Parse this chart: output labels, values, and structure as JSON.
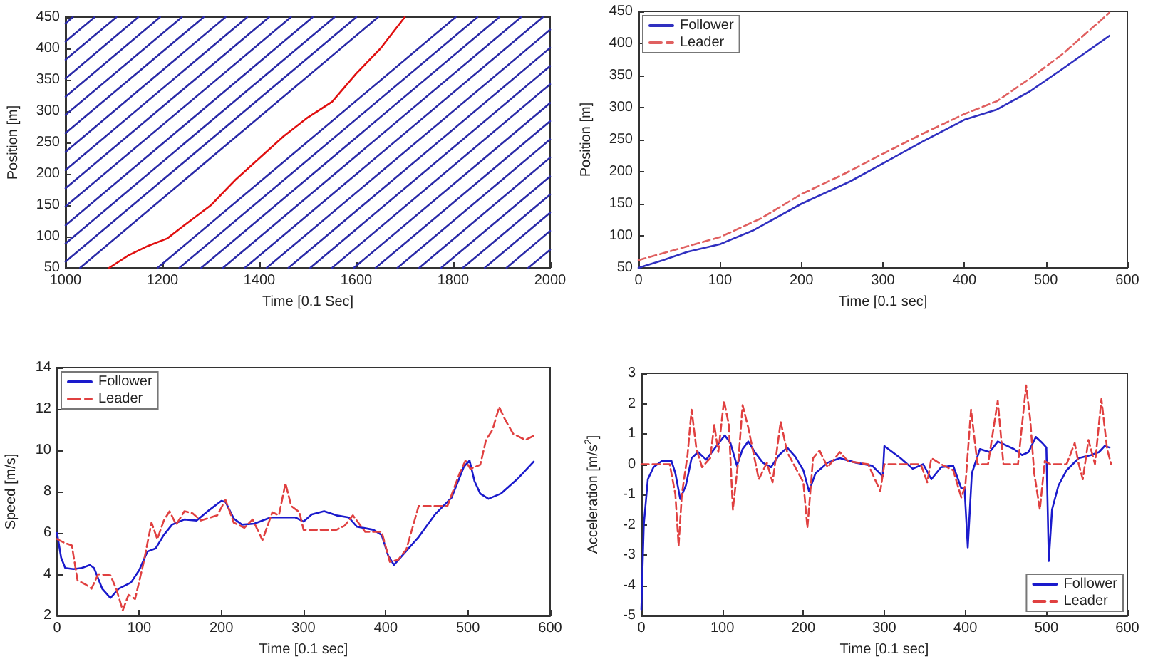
{
  "chart_data": [
    {
      "type": "line",
      "xlabel": "Time [0.1 Sec]",
      "ylabel": "Position [m]",
      "xlim": [
        1000,
        2000
      ],
      "ylim": [
        50,
        450
      ],
      "xticks": [
        1000,
        1200,
        1400,
        1600,
        1800,
        2000
      ],
      "yticks": [
        50,
        100,
        150,
        200,
        250,
        300,
        350,
        400,
        450
      ],
      "grid": false,
      "legend": false,
      "series": [
        {
          "color": "#2a2aa8",
          "x": [
            1000,
            1015
          ],
          "values": [
            440,
            450
          ]
        },
        {
          "color": "#2a2aa8",
          "x": [
            1000,
            1060
          ],
          "values": [
            411,
            450
          ]
        },
        {
          "color": "#2a2aa8",
          "x": [
            1000,
            1105
          ],
          "values": [
            382,
            450
          ]
        },
        {
          "color": "#2a2aa8",
          "x": [
            1000,
            1150
          ],
          "values": [
            352,
            450
          ]
        },
        {
          "color": "#2a2aa8",
          "x": [
            1000,
            1195
          ],
          "values": [
            323,
            450
          ]
        },
        {
          "color": "#2a2aa8",
          "x": [
            1000,
            1240
          ],
          "values": [
            294,
            450
          ]
        },
        {
          "color": "#2a2aa8",
          "x": [
            1000,
            1285
          ],
          "values": [
            265,
            450
          ]
        },
        {
          "color": "#2a2aa8",
          "x": [
            1000,
            1330
          ],
          "values": [
            235,
            450
          ]
        },
        {
          "color": "#2a2aa8",
          "x": [
            1000,
            1375
          ],
          "values": [
            206,
            450
          ]
        },
        {
          "color": "#2a2aa8",
          "x": [
            1000,
            1420
          ],
          "values": [
            177,
            450
          ]
        },
        {
          "color": "#2a2aa8",
          "x": [
            1000,
            1465
          ],
          "values": [
            148,
            450
          ]
        },
        {
          "color": "#2a2aa8",
          "x": [
            1000,
            1510
          ],
          "values": [
            118,
            450
          ]
        },
        {
          "color": "#2a2aa8",
          "x": [
            1000,
            1555
          ],
          "values": [
            89,
            450
          ]
        },
        {
          "color": "#2a2aa8",
          "x": [
            1000,
            1600
          ],
          "values": [
            60,
            450
          ]
        },
        {
          "color": "#2a2aa8",
          "x": [
            1030,
            1645
          ],
          "values": [
            50,
            450
          ]
        },
        {
          "color": "#2a2aa8",
          "x": [
            1190,
            1805
          ],
          "values": [
            50,
            450
          ]
        },
        {
          "color": "#2a2aa8",
          "x": [
            1235,
            1850
          ],
          "values": [
            50,
            450
          ]
        },
        {
          "color": "#2a2aa8",
          "x": [
            1280,
            1895
          ],
          "values": [
            50,
            450
          ]
        },
        {
          "color": "#2a2aa8",
          "x": [
            1325,
            1940
          ],
          "values": [
            50,
            450
          ]
        },
        {
          "color": "#2a2aa8",
          "x": [
            1370,
            1985
          ],
          "values": [
            50,
            450
          ]
        },
        {
          "color": "#2a2aa8",
          "x": [
            1415,
            2000
          ],
          "values": [
            50,
            430
          ]
        },
        {
          "color": "#2a2aa8",
          "x": [
            1460,
            2000
          ],
          "values": [
            50,
            401
          ]
        },
        {
          "color": "#2a2aa8",
          "x": [
            1505,
            2000
          ],
          "values": [
            50,
            372
          ]
        },
        {
          "color": "#2a2aa8",
          "x": [
            1550,
            2000
          ],
          "values": [
            50,
            343
          ]
        },
        {
          "color": "#2a2aa8",
          "x": [
            1595,
            2000
          ],
          "values": [
            50,
            313
          ]
        },
        {
          "color": "#2a2aa8",
          "x": [
            1640,
            2000
          ],
          "values": [
            50,
            284
          ]
        },
        {
          "color": "#2a2aa8",
          "x": [
            1685,
            2000
          ],
          "values": [
            50,
            255
          ]
        },
        {
          "color": "#2a2aa8",
          "x": [
            1730,
            2000
          ],
          "values": [
            50,
            226
          ]
        },
        {
          "color": "#2a2aa8",
          "x": [
            1775,
            2000
          ],
          "values": [
            50,
            196
          ]
        },
        {
          "color": "#2a2aa8",
          "x": [
            1820,
            2000
          ],
          "values": [
            50,
            167
          ]
        },
        {
          "color": "#2a2aa8",
          "x": [
            1865,
            2000
          ],
          "values": [
            50,
            138
          ]
        },
        {
          "color": "#2a2aa8",
          "x": [
            1910,
            2000
          ],
          "values": [
            50,
            109
          ]
        },
        {
          "color": "#2a2aa8",
          "x": [
            1955,
            2000
          ],
          "values": [
            50,
            79
          ]
        },
        {
          "color": "#e01010",
          "x": [
            1090,
            1130,
            1170,
            1210,
            1240,
            1300,
            1350,
            1400,
            1450,
            1500,
            1550,
            1600,
            1650,
            1700
          ],
          "values": [
            50,
            70,
            85,
            97,
            115,
            150,
            190,
            225,
            260,
            290,
            315,
            360,
            400,
            450
          ]
        }
      ]
    },
    {
      "type": "line",
      "xlabel": "Time [0.1 sec]",
      "ylabel": "Position [m]",
      "xlim": [
        0,
        600
      ],
      "ylim": [
        50,
        450
      ],
      "xticks": [
        0,
        100,
        200,
        300,
        400,
        500,
        600
      ],
      "yticks": [
        50,
        100,
        150,
        200,
        250,
        300,
        350,
        400,
        450
      ],
      "grid": false,
      "legend": "top left",
      "series": [
        {
          "name": "Follower",
          "color": "#3030c0",
          "x": [
            0,
            30,
            60,
            100,
            140,
            200,
            260,
            300,
            350,
            400,
            440,
            480,
            520,
            578
          ],
          "values": [
            50,
            62,
            75,
            87,
            108,
            150,
            185,
            213,
            248,
            281,
            297,
            325,
            360,
            412
          ]
        },
        {
          "name": "Leader",
          "color": "#e06060",
          "line_style": "dashed",
          "x": [
            0,
            50,
            100,
            150,
            200,
            250,
            300,
            350,
            400,
            440,
            480,
            520,
            578
          ],
          "values": [
            62,
            80,
            98,
            127,
            165,
            195,
            228,
            260,
            290,
            310,
            345,
            383,
            448
          ]
        }
      ]
    },
    {
      "type": "line",
      "xlabel": "Time [0.1 sec]",
      "ylabel": "Speed [m/s]",
      "xlim": [
        0,
        600
      ],
      "ylim": [
        2,
        14
      ],
      "xticks": [
        0,
        100,
        200,
        300,
        400,
        500,
        600
      ],
      "yticks": [
        2,
        4,
        6,
        8,
        10,
        12,
        14
      ],
      "grid": false,
      "legend": "top left",
      "series": [
        {
          "name": "Follower",
          "color": "#1a1acc",
          "x": [
            0,
            5,
            10,
            20,
            30,
            40,
            45,
            55,
            65,
            75,
            90,
            100,
            110,
            120,
            130,
            140,
            155,
            170,
            185,
            200,
            205,
            215,
            225,
            240,
            260,
            290,
            300,
            310,
            325,
            340,
            355,
            365,
            385,
            395,
            403,
            410,
            420,
            440,
            460,
            480,
            495,
            502,
            508,
            515,
            525,
            540,
            560,
            580
          ],
          "values": [
            6.0,
            4.8,
            4.3,
            4.25,
            4.3,
            4.45,
            4.3,
            3.3,
            2.85,
            3.3,
            3.6,
            4.2,
            5.1,
            5.25,
            5.9,
            6.4,
            6.65,
            6.6,
            7.1,
            7.55,
            7.5,
            6.7,
            6.4,
            6.45,
            6.75,
            6.75,
            6.55,
            6.9,
            7.05,
            6.85,
            6.75,
            6.3,
            6.15,
            5.9,
            4.9,
            4.45,
            4.9,
            5.8,
            6.9,
            7.7,
            9.2,
            9.5,
            8.5,
            7.9,
            7.65,
            7.9,
            8.6,
            9.45
          ]
        },
        {
          "name": "Leader",
          "color": "#e04040",
          "line_style": "dashed",
          "x": [
            0,
            10,
            18,
            25,
            35,
            42,
            50,
            65,
            72,
            80,
            87,
            95,
            105,
            115,
            122,
            130,
            137,
            145,
            155,
            165,
            175,
            195,
            205,
            215,
            228,
            238,
            250,
            262,
            270,
            278,
            285,
            295,
            300,
            340,
            350,
            360,
            375,
            395,
            405,
            415,
            425,
            440,
            460,
            475,
            490,
            497,
            503,
            515,
            522,
            530,
            538,
            545,
            555,
            570,
            580
          ],
          "values": [
            5.7,
            5.5,
            5.4,
            3.7,
            3.5,
            3.3,
            4.0,
            3.95,
            3.3,
            2.25,
            3.0,
            2.8,
            4.5,
            6.5,
            5.7,
            6.6,
            7.05,
            6.4,
            7.05,
            6.95,
            6.6,
            6.85,
            7.6,
            6.5,
            6.25,
            6.65,
            5.65,
            7.0,
            6.85,
            8.4,
            7.3,
            7.0,
            6.15,
            6.15,
            6.35,
            6.85,
            6.05,
            6.05,
            4.6,
            4.7,
            5.2,
            7.3,
            7.3,
            7.3,
            8.9,
            9.5,
            9.1,
            9.3,
            10.5,
            11.0,
            12.1,
            11.5,
            10.8,
            10.5,
            10.7
          ]
        }
      ]
    },
    {
      "type": "line",
      "xlabel": "Time [0.1 sec]",
      "ylabel": "Acceleration [m/s$^{2}$]",
      "xlim": [
        0,
        600
      ],
      "ylim": [
        -5,
        3
      ],
      "xticks": [
        0,
        100,
        200,
        300,
        400,
        500,
        600
      ],
      "yticks": [
        -5,
        -4,
        -3,
        -2,
        -1,
        0,
        1,
        2,
        3
      ],
      "grid": false,
      "legend": "bottom right",
      "series": [
        {
          "name": "Follower",
          "color": "#1a1acc",
          "x": [
            0,
            3,
            8,
            15,
            25,
            37,
            42,
            48,
            55,
            62,
            70,
            80,
            90,
            103,
            110,
            118,
            125,
            132,
            140,
            150,
            160,
            170,
            180,
            190,
            200,
            207,
            215,
            230,
            245,
            265,
            285,
            298,
            300,
            320,
            335,
            348,
            358,
            370,
            385,
            395,
            399,
            403,
            408,
            418,
            430,
            440,
            460,
            470,
            478,
            487,
            495,
            500,
            503,
            507,
            515,
            525,
            540,
            555,
            565,
            572,
            578
          ],
          "values": [
            -4.8,
            -2.0,
            -0.5,
            -0.1,
            0.1,
            0.12,
            -0.3,
            -1.15,
            -0.7,
            0.2,
            0.4,
            0.15,
            0.5,
            0.95,
            0.7,
            -0.05,
            0.5,
            0.75,
            0.4,
            0.05,
            -0.1,
            0.3,
            0.55,
            0.25,
            -0.2,
            -0.9,
            -0.3,
            0.05,
            0.2,
            0.05,
            -0.05,
            -0.4,
            0.6,
            0.2,
            -0.15,
            0.0,
            -0.5,
            -0.1,
            -0.05,
            -0.8,
            -0.8,
            -2.75,
            -0.3,
            0.5,
            0.4,
            0.75,
            0.5,
            0.3,
            0.4,
            0.9,
            0.7,
            0.55,
            -3.2,
            -1.5,
            -0.7,
            -0.2,
            0.2,
            0.3,
            0.4,
            0.6,
            0.55
          ]
        },
        {
          "name": "Leader",
          "color": "#e04040",
          "line_style": "dashed",
          "x": [
            0,
            35,
            42,
            46,
            50,
            57,
            62,
            68,
            75,
            85,
            90,
            95,
            102,
            108,
            113,
            120,
            125,
            132,
            145,
            155,
            162,
            172,
            180,
            192,
            200,
            205,
            212,
            220,
            230,
            245,
            255,
            280,
            295,
            300,
            330,
            345,
            353,
            358,
            370,
            385,
            395,
            400,
            407,
            415,
            428,
            440,
            447,
            465,
            475,
            480,
            485,
            492,
            498,
            505,
            525,
            535,
            540,
            545,
            552,
            560,
            568,
            575,
            580
          ],
          "values": [
            0,
            0,
            -1.0,
            -2.7,
            -1.0,
            0.3,
            1.8,
            0.5,
            -0.1,
            0.2,
            1.3,
            0.4,
            2.1,
            1.3,
            -1.5,
            0.2,
            1.95,
            1.2,
            -0.5,
            0.05,
            -0.6,
            1.4,
            0.4,
            -0.2,
            -0.6,
            -2.1,
            0.2,
            0.45,
            -0.1,
            0.4,
            0.1,
            0,
            -0.9,
            0,
            0,
            0,
            -0.6,
            0.2,
            0,
            -0.2,
            -1.1,
            -0.7,
            1.8,
            0,
            0,
            2.1,
            0,
            0,
            2.6,
            1.5,
            -0.3,
            -1.5,
            0.1,
            0,
            0,
            0.7,
            0,
            -0.5,
            0.8,
            0,
            2.15,
            0.5,
            0
          ]
        }
      ]
    }
  ]
}
